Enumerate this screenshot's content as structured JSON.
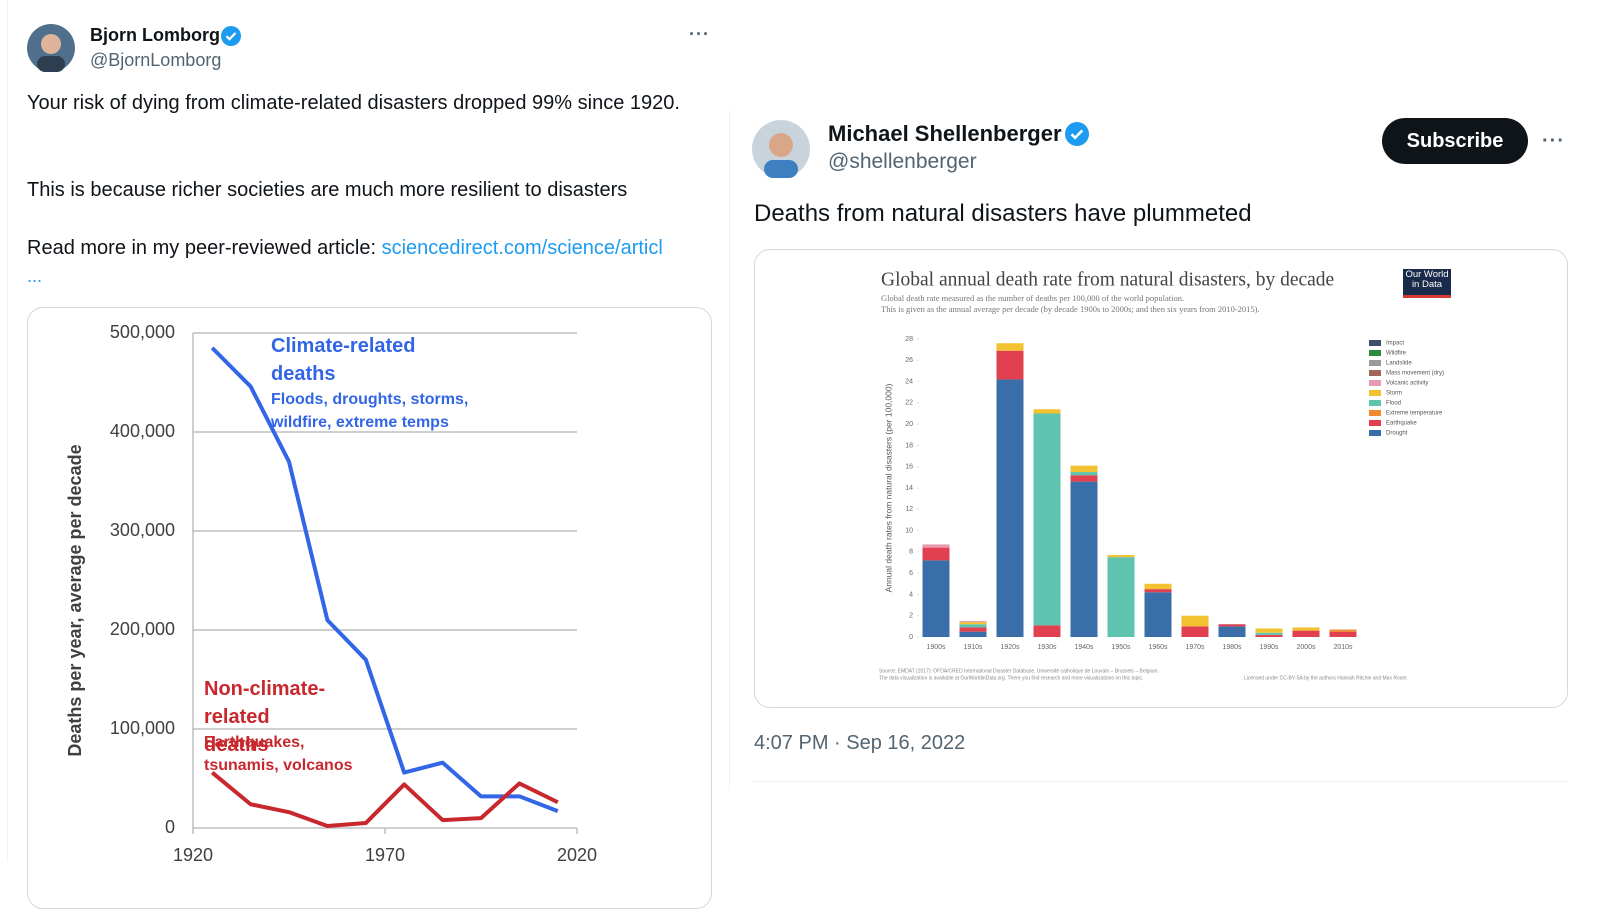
{
  "tweets": [
    {
      "author": "Bjorn Lomborg",
      "handle": "@BjornLomborg",
      "menu": "···",
      "paragraphs": [
        "Your risk of dying from climate-related disasters dropped 99% since 1920.",
        "This is because richer societies are much more resilient to disasters"
      ],
      "link_intro": "Read more in my peer-reviewed article:",
      "link": "sciencedirect.com/science/articl",
      "more": "..."
    },
    {
      "author": "Michael Shellenberger",
      "handle": "@shellenberger",
      "button": "Subscribe",
      "menu": "···",
      "text": "Deaths from natural disasters have plummeted",
      "timestamp": "4:07 PM · Sep 16, 2022"
    }
  ],
  "chart_data": [
    {
      "type": "line",
      "y_label": "Deaths per year, average per decade",
      "x": [
        1925,
        1935,
        1945,
        1955,
        1965,
        1975,
        1985,
        1995,
        2005,
        2015
      ],
      "xlim": [
        1920,
        2020
      ],
      "xticks": [
        1920,
        1970,
        2020
      ],
      "ylim": [
        0,
        500000
      ],
      "yticks": [
        0,
        {
          "value": 100000,
          "label": "100,000"
        },
        {
          "value": 200000,
          "label": "200,000"
        },
        {
          "value": 300000,
          "label": "300,000"
        },
        {
          "value": 400000,
          "label": "400,000"
        },
        {
          "value": 500000,
          "label": "500,000"
        }
      ],
      "grid": true,
      "series": [
        {
          "name": "Climate-related deaths",
          "description": "Floods, droughts, storms, wildfire, extreme temps",
          "color": "#3366e6",
          "values": [
            485000,
            446000,
            370000,
            210000,
            170000,
            56000,
            66000,
            32000,
            32000,
            17000
          ]
        },
        {
          "name": "Non-climate-related deaths",
          "description": "Earthquakes, tsunamis, volcanos",
          "color": "#c8282d",
          "values": [
            56000,
            24000,
            16000,
            2000,
            5000,
            44000,
            8000,
            10000,
            45000,
            26000
          ]
        }
      ]
    },
    {
      "type": "bar",
      "stacked": true,
      "title": "Global annual death rate from natural disasters, by decade",
      "subtitle": [
        "Global death rate measured as the number of deaths per 100,000 of the world population.",
        "This is given as the annual average per decade (by decade 1900s to 2000s; and then six years from 2010-2015)."
      ],
      "logo": "Our World in Data",
      "y_label": "Annual death rates from natural disasters (per 100,000)",
      "categories": [
        "1900s",
        "1910s",
        "1920s",
        "1930s",
        "1940s",
        "1950s",
        "1960s",
        "1970s",
        "1980s",
        "1990s",
        "2000s",
        "2010s"
      ],
      "ylim": [
        0,
        28
      ],
      "yticks": [
        0,
        2,
        4,
        6,
        8,
        10,
        12,
        14,
        16,
        18,
        20,
        22,
        24,
        26,
        28
      ],
      "series": [
        {
          "name": "Impact",
          "color": "#3d4f6b",
          "values": [
            0,
            0,
            0,
            0,
            0,
            0,
            0,
            0,
            0,
            0,
            0,
            0
          ]
        },
        {
          "name": "Wildfire",
          "color": "#2e8b3e",
          "values": [
            0,
            0,
            0,
            0,
            0,
            0,
            0,
            0,
            0,
            0,
            0,
            0
          ]
        },
        {
          "name": "Landslide",
          "color": "#9a9a9a",
          "values": [
            0,
            0,
            0,
            0,
            0,
            0,
            0,
            0,
            0,
            0,
            0,
            0
          ]
        },
        {
          "name": "Mass movement (dry)",
          "color": "#a0665c",
          "values": [
            0,
            0,
            0,
            0,
            0,
            0,
            0,
            0,
            0,
            0,
            0,
            0
          ]
        },
        {
          "name": "Volcanic activity",
          "color": "#e89bb0",
          "values": [
            0.3,
            0.1,
            0,
            0,
            0,
            0,
            0,
            0,
            0,
            0,
            0,
            0
          ]
        },
        {
          "name": "Storm",
          "color": "#f2c230",
          "values": [
            0,
            0.2,
            0.7,
            0.4,
            0.6,
            0.2,
            0.5,
            1.0,
            0,
            0.4,
            0.3,
            0
          ]
        },
        {
          "name": "Flood",
          "color": "#5ec4b0",
          "values": [
            0,
            0.3,
            0,
            19.9,
            0.3,
            7.5,
            0,
            0,
            0,
            0.2,
            0,
            0
          ]
        },
        {
          "name": "Extreme temperature",
          "color": "#f08a2c",
          "values": [
            0,
            0,
            0,
            0,
            0,
            0,
            0,
            0,
            0,
            0,
            0,
            0.2
          ]
        },
        {
          "name": "Earthquake",
          "color": "#e04050",
          "values": [
            1.2,
            0.4,
            2.7,
            1.1,
            0.6,
            0,
            0.3,
            1.0,
            0.2,
            0.2,
            0.6,
            0.5
          ]
        },
        {
          "name": "Drought",
          "color": "#3a6ea8",
          "values": [
            7.2,
            0.5,
            24.2,
            0,
            14.6,
            0,
            4.2,
            0,
            1.0,
            0,
            0,
            0
          ]
        }
      ],
      "source": [
        "Source: EMDAT (2017): OFDA/CRED International Disaster Database, Université catholique de Louvain – Brussels – Belgium.",
        "The data visualization is available at OurWorldinData.org. There you find research and more visualizations on this topic."
      ],
      "license": "Licensed under CC-BY-SA by the authors Hannah Ritchie and Max Roser."
    }
  ]
}
